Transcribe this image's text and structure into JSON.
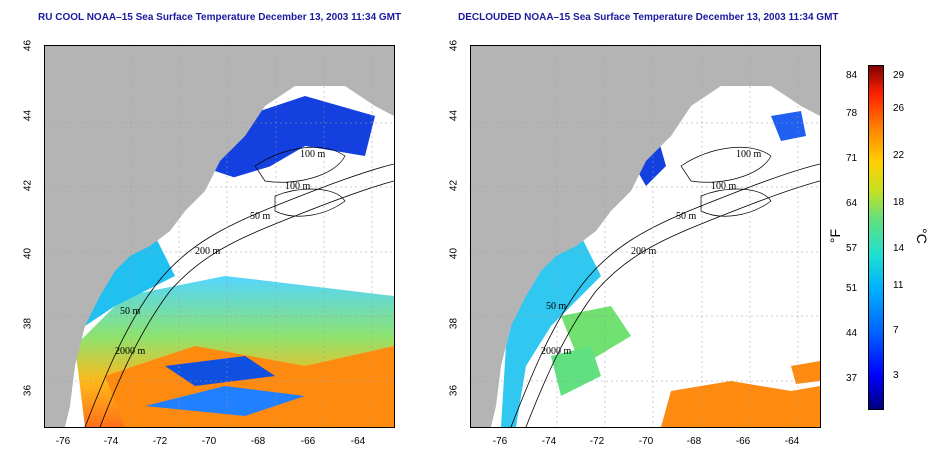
{
  "left_panel": {
    "title": "RU COOL NOAA–15 Sea Surface Temperature December 13, 2003 11:34 GMT",
    "contours": [
      "100 m",
      "100 m",
      "50 m",
      "200 m",
      "50 m",
      "2000 m"
    ]
  },
  "right_panel": {
    "title": "DECLOUDED NOAA–15 Sea Surface Temperature December 13, 2003 11:34 GMT",
    "contours": [
      "100 m",
      "100 m",
      "50 m",
      "200 m",
      "50 m",
      "2000 m"
    ]
  },
  "lat_ticks": [
    "46",
    "44",
    "42",
    "40",
    "38",
    "36"
  ],
  "lon_ticks": [
    "-76",
    "-74",
    "-72",
    "-70",
    "-68",
    "-66",
    "-64"
  ],
  "colorbar": {
    "f_unit": "°F",
    "c_unit": "°C",
    "f_ticks": [
      "84",
      "78",
      "71",
      "64",
      "57",
      "51",
      "44",
      "37"
    ],
    "c_ticks": [
      "29",
      "26",
      "22",
      "18",
      "14",
      "11",
      "7",
      "3"
    ]
  },
  "colors": {
    "land": "#b4b4b4",
    "title": "#1a1aa0"
  }
}
